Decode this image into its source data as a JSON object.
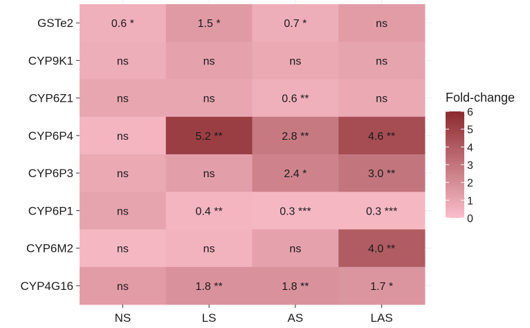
{
  "chart_data": {
    "type": "heatmap",
    "title": "",
    "xlabel": "",
    "ylabel": "",
    "x_categories": [
      "NS",
      "LS",
      "AS",
      "LAS"
    ],
    "y_categories": [
      "GSTe2",
      "CYP9K1",
      "CYP6Z1",
      "CYP6P4",
      "CYP6P3",
      "CYP6P1",
      "CYP6M2",
      "CYP4G16"
    ],
    "cells": [
      {
        "row": "GSTe2",
        "values": [
          0.6,
          1.5,
          0.7,
          1.4
        ],
        "labels": [
          "0.6 *",
          "1.5 *",
          "0.7 *",
          "ns"
        ]
      },
      {
        "row": "CYP9K1",
        "values": [
          0.7,
          1.2,
          0.9,
          1.1
        ],
        "labels": [
          "ns",
          "ns",
          "ns",
          "ns"
        ]
      },
      {
        "row": "CYP6Z1",
        "values": [
          1.0,
          1.0,
          0.6,
          0.9
        ],
        "labels": [
          "ns",
          "ns",
          "0.6 **",
          "ns"
        ]
      },
      {
        "row": "CYP6P4",
        "values": [
          0.4,
          5.2,
          2.8,
          4.6
        ],
        "labels": [
          "ns",
          "5.2 **",
          "2.8 **",
          "4.6 **"
        ]
      },
      {
        "row": "CYP6P3",
        "values": [
          0.9,
          1.3,
          2.4,
          3.0
        ],
        "labels": [
          "ns",
          "ns",
          "2.4 *",
          "3.0 **"
        ]
      },
      {
        "row": "CYP6P1",
        "values": [
          1.1,
          0.4,
          0.3,
          0.3
        ],
        "labels": [
          "ns",
          "0.4 **",
          "0.3 ***",
          "0.3 ***"
        ]
      },
      {
        "row": "CYP6M2",
        "values": [
          0.3,
          0.5,
          1.2,
          4.0
        ],
        "labels": [
          "ns",
          "ns",
          "ns",
          "4.0 **"
        ]
      },
      {
        "row": "CYP4G16",
        "values": [
          1.4,
          1.8,
          1.8,
          1.7
        ],
        "labels": [
          "ns",
          "1.8 **",
          "1.8 **",
          "1.7 *"
        ]
      }
    ],
    "legend": {
      "title": "Fold-change",
      "ticks": [
        "6",
        "5",
        "4",
        "3",
        "2",
        "1",
        "0"
      ],
      "range": [
        0,
        6
      ],
      "placement": "right"
    },
    "color_scale": {
      "low": "#fbbfcb",
      "high": "#8b2a2e"
    },
    "grid": true
  }
}
